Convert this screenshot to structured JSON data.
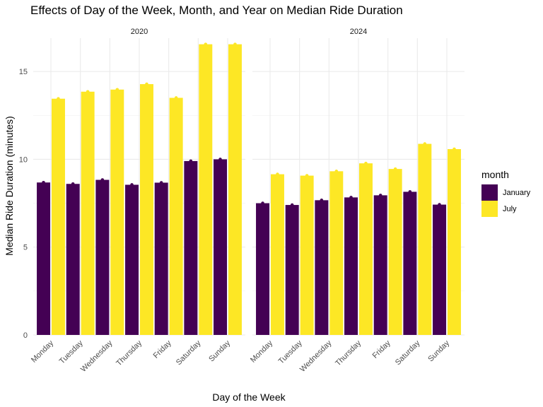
{
  "chart_data": {
    "type": "bar",
    "title": "Effects of Day of the Week, Month, and Year on Median Ride Duration",
    "xlabel": "Day of the Week",
    "ylabel": "Median Ride Duration (minutes)",
    "ylim": [
      0,
      17.3
    ],
    "yticks": [
      0,
      5,
      10,
      15
    ],
    "categories": [
      "Monday",
      "Tuesday",
      "Wednesday",
      "Thursday",
      "Friday",
      "Saturday",
      "Sunday"
    ],
    "legend": {
      "title": "month",
      "position": "right",
      "entries": [
        {
          "label": "January",
          "color": "#440154"
        },
        {
          "label": "July",
          "color": "#FDE725"
        }
      ]
    },
    "panels": [
      {
        "label": "2020",
        "series": [
          {
            "name": "January",
            "color": "#440154",
            "values": [
              8.68,
              8.6,
              8.83,
              8.55,
              8.67,
              9.9,
              10.0
            ]
          },
          {
            "name": "July",
            "color": "#FDE725",
            "values": [
              13.45,
              13.85,
              13.97,
              14.28,
              13.5,
              16.55,
              16.55
            ]
          }
        ]
      },
      {
        "label": "2024",
        "series": [
          {
            "name": "January",
            "color": "#440154",
            "values": [
              7.5,
              7.4,
              7.67,
              7.83,
              7.95,
              8.15,
              7.42
            ]
          },
          {
            "name": "July",
            "color": "#FDE725",
            "values": [
              9.15,
              9.07,
              9.32,
              9.77,
              9.45,
              10.88,
              10.58
            ]
          }
        ]
      }
    ]
  }
}
